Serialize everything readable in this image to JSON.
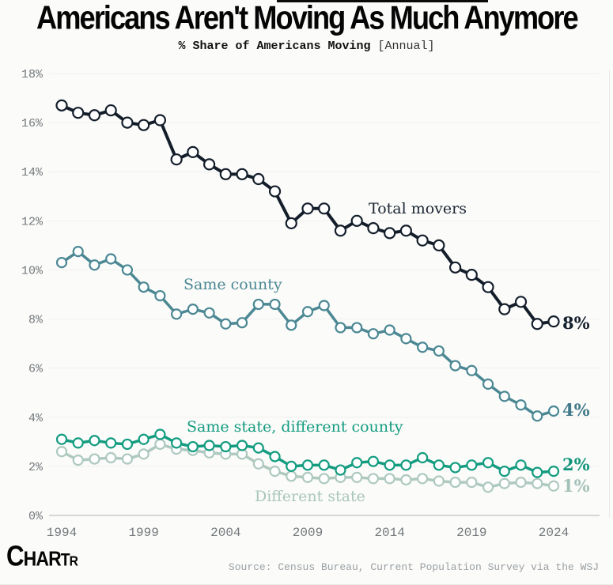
{
  "header": {
    "title": "Americans Aren't Moving As Much Anymore",
    "subtitle_bold": "% Share of Americans Moving",
    "subtitle_light": "[Annual]"
  },
  "chart_data": {
    "type": "line",
    "title": "Americans Aren't Moving As Much Anymore",
    "subtitle": "% Share of Americans Moving [Annual]",
    "x": [
      1994,
      1995,
      1996,
      1997,
      1998,
      1999,
      2000,
      2001,
      2002,
      2003,
      2004,
      2005,
      2006,
      2007,
      2008,
      2009,
      2010,
      2011,
      2012,
      2013,
      2014,
      2015,
      2016,
      2017,
      2018,
      2019,
      2020,
      2021,
      2022,
      2023,
      2024
    ],
    "series": [
      {
        "name": "Total movers",
        "color": "#141e2b",
        "values": [
          16.7,
          16.4,
          16.3,
          16.5,
          16.0,
          15.9,
          16.1,
          14.5,
          14.8,
          14.3,
          13.9,
          13.9,
          13.7,
          13.2,
          11.9,
          12.5,
          12.5,
          11.6,
          12.0,
          11.7,
          11.5,
          11.6,
          11.2,
          11.0,
          10.1,
          9.8,
          9.3,
          8.4,
          8.7,
          7.8,
          7.9
        ]
      },
      {
        "name": "Same county",
        "color": "#4b8894",
        "values": [
          10.3,
          10.75,
          10.2,
          10.45,
          10.0,
          9.3,
          8.95,
          8.2,
          8.4,
          8.25,
          7.8,
          7.85,
          8.6,
          8.6,
          7.75,
          8.3,
          8.55,
          7.65,
          7.65,
          7.4,
          7.55,
          7.2,
          6.85,
          6.7,
          6.1,
          5.9,
          5.35,
          4.85,
          4.5,
          4.05,
          4.25
        ]
      },
      {
        "name": "Same state, different county",
        "color": "#139c80",
        "values": [
          3.1,
          2.95,
          3.05,
          2.95,
          2.9,
          3.1,
          3.3,
          2.95,
          2.8,
          2.85,
          2.8,
          2.85,
          2.75,
          2.4,
          2.0,
          2.05,
          2.05,
          1.85,
          2.15,
          2.2,
          2.05,
          2.05,
          2.35,
          2.05,
          1.95,
          2.05,
          2.15,
          1.8,
          2.05,
          1.75,
          1.8
        ]
      },
      {
        "name": "Different state",
        "color": "#aec9c0",
        "values": [
          2.6,
          2.25,
          2.3,
          2.35,
          2.3,
          2.5,
          2.9,
          2.7,
          2.65,
          2.55,
          2.5,
          2.5,
          2.1,
          1.8,
          1.6,
          1.55,
          1.5,
          1.55,
          1.55,
          1.5,
          1.5,
          1.45,
          1.5,
          1.4,
          1.35,
          1.35,
          1.15,
          1.3,
          1.35,
          1.3,
          1.2
        ]
      }
    ],
    "ylim": [
      0,
      18
    ],
    "ytick_values": [
      0,
      2,
      4,
      6,
      8,
      10,
      12,
      14,
      16,
      18
    ],
    "ytick_labels": [
      "0%",
      "2%",
      "4%",
      "6%",
      "8%",
      "10%",
      "12%",
      "14%",
      "16%",
      "18%"
    ],
    "xticks": [
      1994,
      1999,
      2004,
      2009,
      2014,
      2019,
      2024
    ],
    "grid": true,
    "legend_position": "inline-labels",
    "annotations": {
      "total": "Total movers",
      "same_county": "Same county",
      "same_state": "Same state, different county",
      "different_state": "Different state"
    },
    "end_labels": [
      {
        "text": "8%",
        "color": "#16212e"
      },
      {
        "text": "4%",
        "color": "#41798a"
      },
      {
        "text": "2%",
        "color": "#12947c"
      },
      {
        "text": "1%",
        "color": "#a3c1b8"
      }
    ]
  },
  "footer": {
    "logo": "CHARTR",
    "source": "Source: Census Bureau, Current Population Survey via the WSJ"
  }
}
